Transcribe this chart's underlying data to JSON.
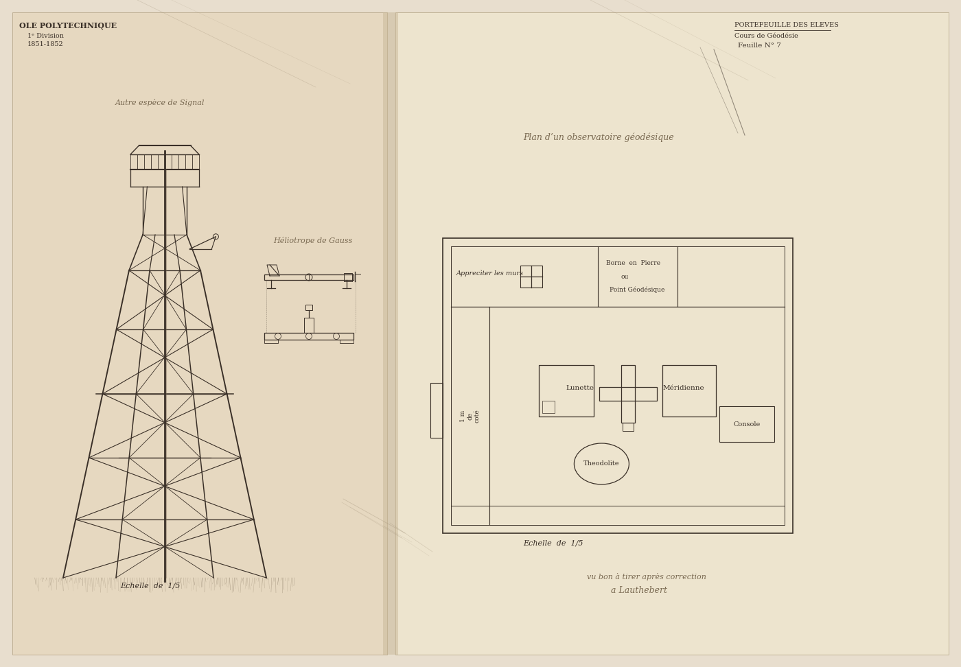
{
  "bg_color": "#e8dece",
  "paper_left": "#e6d8c0",
  "paper_right": "#ede4ce",
  "line_color": "#3a3028",
  "faint_line": "#9a8a72",
  "text_color": "#3a3028",
  "faint_text": "#7a6a52",
  "light_text": "#9a8a72",
  "top_left_lines": [
    "OLE POLYTECHNIQUE",
    "1ᵉ Division",
    "1851-1852"
  ],
  "top_right_lines": [
    "PORTEFEUILLE DES ELEVES",
    "Cours de Géodésie",
    "Feuille N° 7"
  ],
  "tower_caption": "Autre espèce de Signal",
  "tower_scale": "Echelle  de  1/5",
  "helio_caption": "Héliotrope de Gauss",
  "plan_title": "Plan d’un observatoire géodésique",
  "plan_scale": "Echelle  de  1/5",
  "annot_walls": "Apprecìter les murs",
  "annot_borne1": "Borne  en  Pierre",
  "annot_borne2": "ou",
  "annot_borne3": "Point Géodésique",
  "label_lunette": "Lunette",
  "label_meridienne": "Méridienne",
  "label_theodolite": "Theodolite",
  "label_console": "Console",
  "room_text": "1 m\nde\ncoté",
  "sig_line1": "vu bon à tirer après correction",
  "sig_line2": "a Lauthebert"
}
